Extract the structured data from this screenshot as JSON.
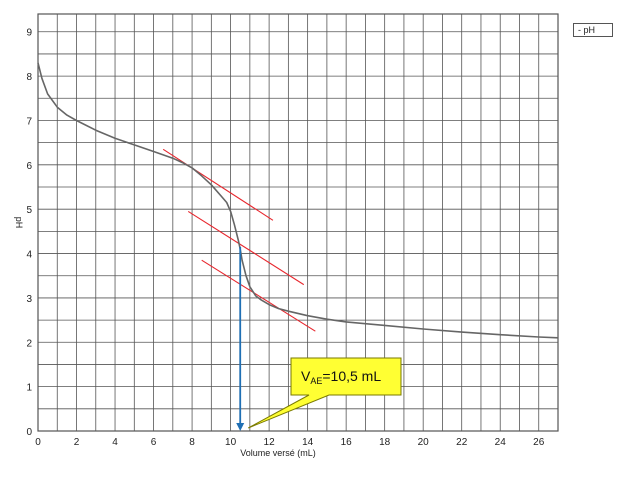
{
  "chart_data": {
    "type": "line",
    "title": "",
    "xlabel": "Volume versé (mL)",
    "ylabel": "pH",
    "xlim": [
      0,
      27
    ],
    "ylim": [
      0,
      9.4
    ],
    "x_ticks": [
      0,
      2,
      4,
      6,
      8,
      10,
      12,
      14,
      16,
      18,
      20,
      22,
      24,
      26
    ],
    "y_ticks": [
      0,
      1,
      2,
      3,
      4,
      5,
      6,
      7,
      8,
      9
    ],
    "grid": true,
    "legend": {
      "placement": "top-right",
      "entries": [
        "pH"
      ]
    },
    "series": [
      {
        "name": "pH",
        "color": "#666666",
        "x": [
          0,
          0.2,
          0.5,
          1,
          1.5,
          2,
          3,
          4,
          5,
          6,
          7,
          7.5,
          8,
          8.5,
          9,
          9.5,
          9.8,
          10,
          10.2,
          10.4,
          10.5,
          10.6,
          10.8,
          11,
          11.3,
          11.6,
          12,
          12.5,
          13,
          14,
          15,
          16,
          18,
          20,
          22,
          24,
          26,
          27
        ],
        "values": [
          8.3,
          7.95,
          7.6,
          7.3,
          7.12,
          7.0,
          6.78,
          6.6,
          6.45,
          6.3,
          6.15,
          6.05,
          5.93,
          5.75,
          5.55,
          5.3,
          5.15,
          4.95,
          4.65,
          4.3,
          4.1,
          3.85,
          3.5,
          3.25,
          3.05,
          2.95,
          2.85,
          2.76,
          2.7,
          2.6,
          2.52,
          2.46,
          2.38,
          2.3,
          2.23,
          2.17,
          2.12,
          2.1
        ]
      }
    ],
    "tangent_lines": {
      "color": "#e8262d",
      "lines": [
        {
          "x": [
            6.5,
            12.2
          ],
          "y": [
            6.35,
            4.75
          ]
        },
        {
          "x": [
            7.8,
            13.8
          ],
          "y": [
            4.95,
            3.3
          ]
        },
        {
          "x": [
            8.5,
            14.4
          ],
          "y": [
            3.85,
            2.25
          ]
        }
      ]
    },
    "equivalence": {
      "x": 10.5,
      "y": 4.15,
      "arrow_color": "#1f6fb4",
      "label_prefix": "V",
      "label_sub": "AE",
      "label_suffix": "=10,5 mL",
      "label_bg": "#ffff33"
    }
  }
}
